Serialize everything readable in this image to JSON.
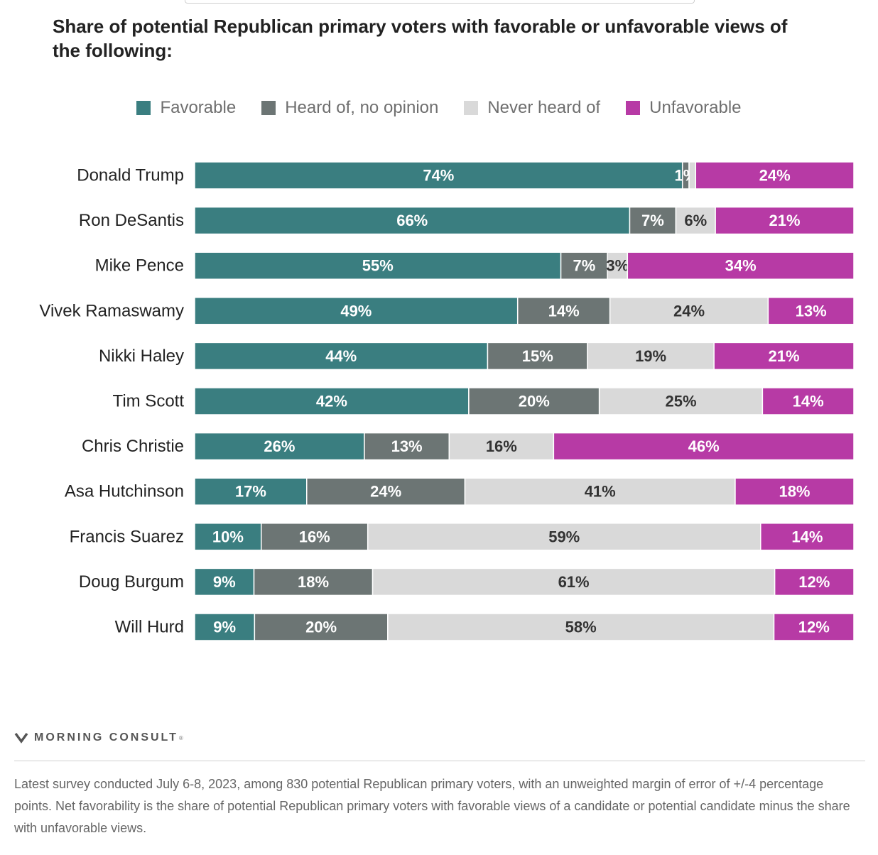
{
  "chart_data": {
    "type": "bar",
    "orientation": "horizontal",
    "stacked": true,
    "title": "Share of potential Republican primary voters with favorable or unfavorable views of the following:",
    "legend_position": "top-center",
    "colors": {
      "Favorable": "#3a7e80",
      "Heard of, no opinion": "#6c7574",
      "Never heard of": "#d9d9d9",
      "Unfavorable": "#b73aa5"
    },
    "label_colors": {
      "Favorable": "#ffffff",
      "Heard of, no opinion": "#ffffff",
      "Never heard of": "#333333",
      "Unfavorable": "#ffffff"
    },
    "categories": [
      "Donald Trump",
      "Ron DeSantis",
      "Mike Pence",
      "Vivek Ramaswamy",
      "Nikki Haley",
      "Tim Scott",
      "Chris Christie",
      "Asa Hutchinson",
      "Francis Suarez",
      "Doug Burgum",
      "Will Hurd"
    ],
    "series": [
      {
        "name": "Favorable",
        "values": [
          74,
          66,
          55,
          49,
          44,
          42,
          26,
          17,
          10,
          9,
          9
        ],
        "labels": [
          "74%",
          "66%",
          "55%",
          "49%",
          "44%",
          "42%",
          "26%",
          "17%",
          "10%",
          "9%",
          "9%"
        ]
      },
      {
        "name": "Heard of, no opinion",
        "values": [
          1,
          7,
          7,
          14,
          15,
          20,
          13,
          24,
          16,
          18,
          20
        ],
        "labels": [
          "1%",
          "7%",
          "7%",
          "14%",
          "15%",
          "20%",
          "13%",
          "24%",
          "16%",
          "18%",
          "20%"
        ]
      },
      {
        "name": "Never heard of",
        "values": [
          1,
          6,
          3,
          24,
          19,
          25,
          16,
          41,
          59,
          61,
          58
        ],
        "labels": [
          "",
          "6%",
          "3%",
          "24%",
          "19%",
          "25%",
          "16%",
          "41%",
          "59%",
          "61%",
          "58%"
        ]
      },
      {
        "name": "Unfavorable",
        "values": [
          24,
          21,
          34,
          13,
          21,
          14,
          46,
          18,
          14,
          12,
          12
        ],
        "labels": [
          "24%",
          "21%",
          "34%",
          "13%",
          "21%",
          "14%",
          "46%",
          "18%",
          "14%",
          "12%",
          "12%"
        ]
      }
    ],
    "xlim": [
      0,
      100
    ],
    "grid": false
  },
  "branding": {
    "logo_text": "MORNING CONSULT",
    "logo_mark": "®"
  },
  "footnote": "Latest survey conducted July 6-8, 2023, among 830 potential Republican primary voters, with an unweighted margin of error of +/-4 percentage points. Net favorability is the share of potential Republican primary voters with favorable views of a candidate or potential candidate minus the share with unfavorable views."
}
